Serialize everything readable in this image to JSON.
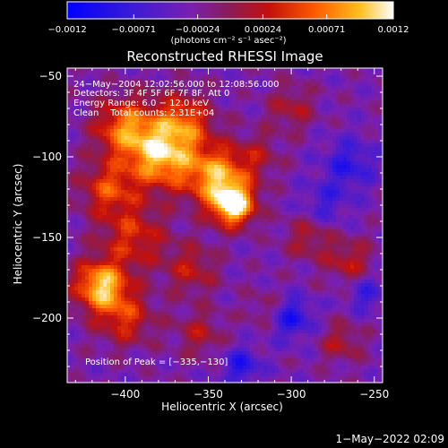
{
  "chart_data": {
    "type": "heatmap",
    "title": "Reconstructed RHESSI Image",
    "xlabel": "Heliocentric X (arcsec)",
    "ylabel": "Heliocentric Y (arcsec)",
    "xlim": [
      -435,
      -245
    ],
    "ylim": [
      -240,
      -45
    ],
    "xticks": [
      -400,
      -350,
      -300,
      -250
    ],
    "xtick_labels": [
      "−400",
      "−350",
      "−300",
      "−250"
    ],
    "yticks": [
      -50,
      -100,
      -150,
      -200
    ],
    "ytick_labels": [
      "−50",
      "−100",
      "−150",
      "−200"
    ],
    "colorbar": {
      "range": [
        -0.0012,
        0.0012
      ],
      "ticks": [
        -0.0012,
        -0.00071,
        -0.00024,
        0.00024,
        0.00071,
        0.0012
      ],
      "tick_labels": [
        "−0.0012",
        "−0.00071",
        "−0.00024",
        "0.00024",
        "0.00071",
        "0.0012"
      ],
      "unit_label": "(photons cm⁻² s⁻¹ asec⁻²)"
    },
    "annotations": [
      "24−May−2004 12:02:56.000 to 12:08:56.000",
      "Detectors: 3F 4F 5F 6F 7F 8F, Att 0",
      "Energy Range: 6.0 − 12.0 keV",
      "Clean    Total counts: 2.31E+04"
    ],
    "peak_label": "Position of Peak = [−335,−130]",
    "peak": [
      -335,
      -130
    ],
    "sources": [
      {
        "x": -335,
        "y": -130,
        "amp": 1.0,
        "sigma": 9
      },
      {
        "x": -345,
        "y": -112,
        "amp": 0.75,
        "sigma": 13
      },
      {
        "x": -378,
        "y": -100,
        "amp": 0.8,
        "sigma": 14
      },
      {
        "x": -400,
        "y": -82,
        "amp": 0.65,
        "sigma": 13
      },
      {
        "x": -365,
        "y": -78,
        "amp": 0.55,
        "sigma": 12
      },
      {
        "x": -410,
        "y": -120,
        "amp": 0.5,
        "sigma": 12
      },
      {
        "x": -395,
        "y": -150,
        "amp": 0.45,
        "sigma": 14
      },
      {
        "x": -415,
        "y": -180,
        "amp": 0.85,
        "sigma": 11
      },
      {
        "x": -400,
        "y": -200,
        "amp": 0.45,
        "sigma": 12
      },
      {
        "x": -360,
        "y": -170,
        "amp": 0.35,
        "sigma": 11
      },
      {
        "x": -355,
        "y": -210,
        "amp": 0.3,
        "sigma": 10
      },
      {
        "x": -300,
        "y": -70,
        "amp": 0.3,
        "sigma": 10
      },
      {
        "x": -290,
        "y": -150,
        "amp": 0.3,
        "sigma": 10
      },
      {
        "x": -265,
        "y": -165,
        "amp": 0.35,
        "sigma": 10
      },
      {
        "x": -270,
        "y": -215,
        "amp": 0.3,
        "sigma": 9
      },
      {
        "x": -315,
        "y": -195,
        "amp": 0.2,
        "sigma": 9
      },
      {
        "x": -320,
        "y": -100,
        "amp": 0.25,
        "sigma": 10
      }
    ],
    "voids": [
      {
        "x": -300,
        "y": -200,
        "amp": -0.45,
        "sigma": 9
      },
      {
        "x": -265,
        "y": -105,
        "amp": -0.35,
        "sigma": 11
      },
      {
        "x": -280,
        "y": -130,
        "amp": -0.25,
        "sigma": 10
      },
      {
        "x": -330,
        "y": -230,
        "amp": -0.4,
        "sigma": 8
      },
      {
        "x": -255,
        "y": -185,
        "amp": -0.3,
        "sigma": 8
      }
    ]
  },
  "footer": {
    "timestamp": "1−May−2022 02:09"
  }
}
